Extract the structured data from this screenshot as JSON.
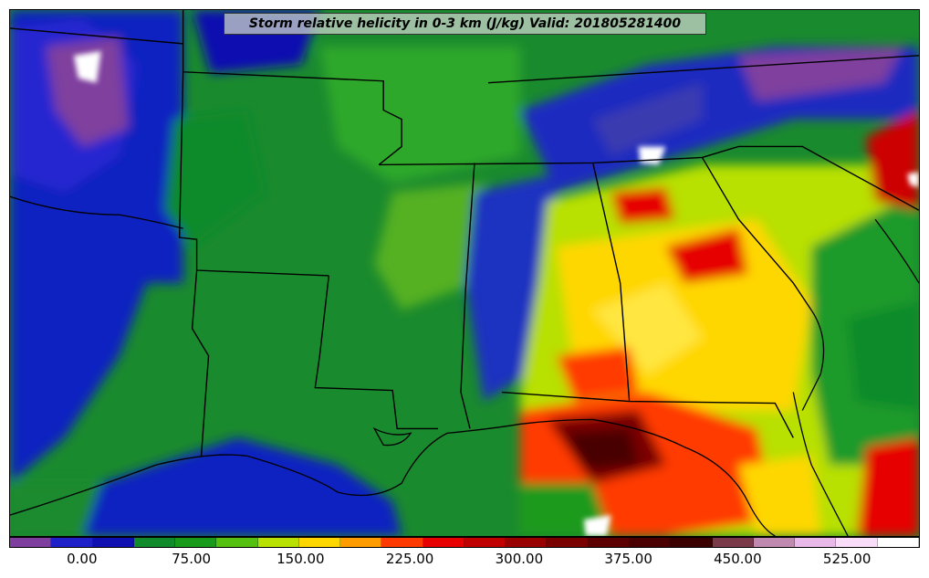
{
  "title": "Storm relative helicity in 0-3 km (J/kg) Valid: 201805281400",
  "colorbar": {
    "colors": [
      "#7f3f9e",
      "#2020c8",
      "#1010b0",
      "#108a2a",
      "#1a9a1a",
      "#55c010",
      "#b8e000",
      "#ffd700",
      "#ff9c00",
      "#ff3a00",
      "#e60000",
      "#c00000",
      "#990000",
      "#7a0000",
      "#5c0000",
      "#4a0000",
      "#3a0000",
      "#7a3a4a",
      "#c08ab0",
      "#e8b8e8",
      "#f8dcf8",
      "#ffffff"
    ],
    "tick_labels": [
      "0.00",
      "75.00",
      "150.00",
      "225.00",
      "300.00",
      "375.00",
      "450.00",
      "525.00"
    ],
    "tick_values": [
      0,
      75,
      150,
      225,
      300,
      375,
      450,
      525
    ],
    "min": -50,
    "max": 575
  }
}
